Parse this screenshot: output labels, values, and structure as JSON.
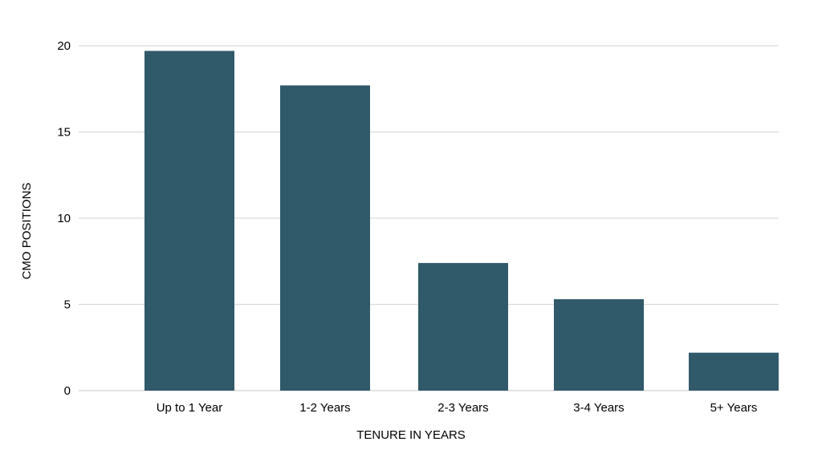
{
  "chart_data": {
    "type": "bar",
    "categories": [
      "Up to 1 Year",
      "1-2 Years",
      "2-3 Years",
      "3-4 Years",
      "5+ Years"
    ],
    "values": [
      19.7,
      17.7,
      7.4,
      5.3,
      2.2
    ],
    "title": "",
    "xlabel": "TENURE IN YEARS",
    "ylabel": "CMO POSITIONS",
    "ylim": [
      0,
      20
    ],
    "yticks": [
      0,
      5,
      10,
      15,
      20
    ],
    "grid": true,
    "legend": "none",
    "colors": {
      "bar": "#30596a",
      "grid": "#d9d9d9",
      "text": "#000000"
    }
  }
}
